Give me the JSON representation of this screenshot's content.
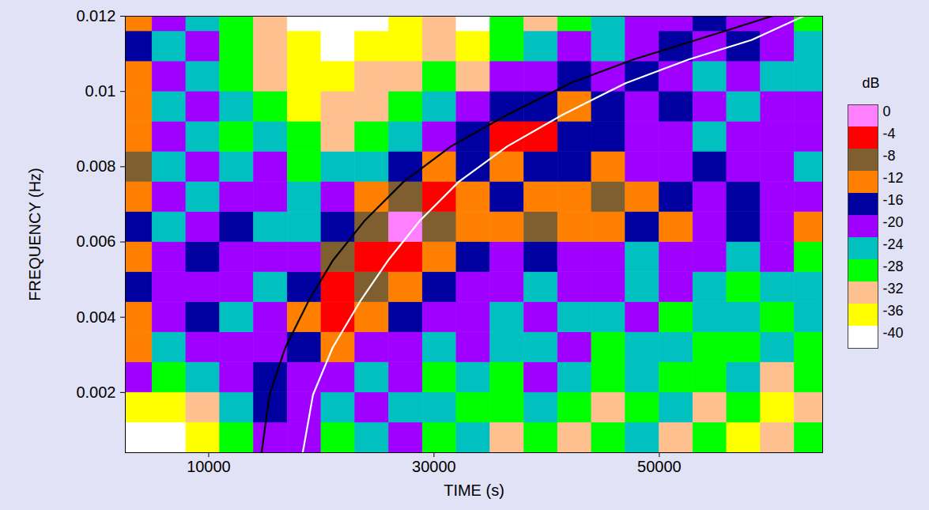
{
  "chart_data": {
    "type": "heatmap",
    "x_label": "TIME (s)",
    "y_label": "FREQUENCY (Hz)",
    "xlim": [
      2600,
      64500
    ],
    "ylim": [
      0.0004,
      0.012
    ],
    "xticks": [
      10000,
      30000,
      50000
    ],
    "yticks": [
      0.002,
      0.004,
      0.006,
      0.008,
      0.01,
      0.012
    ],
    "cells": {
      "x_edges": [
        2600,
        5000,
        8000,
        11000,
        14000,
        17000,
        20000,
        23000,
        26000,
        29000,
        32000,
        35000,
        38000,
        41000,
        44000,
        47000,
        50000,
        53000,
        56000,
        59000,
        62000,
        64500
      ],
      "y_edges": [
        0.0004,
        0.0012,
        0.002,
        0.0028,
        0.0036,
        0.0044,
        0.0052,
        0.006,
        0.0068,
        0.0076,
        0.0084,
        0.0092,
        0.01,
        0.0108,
        0.0116,
        0.012
      ],
      "values": [
        [
          -42,
          -42,
          -38,
          -30,
          -22,
          -22,
          -30,
          -26,
          -22,
          -30,
          -26,
          -34,
          -30,
          -34,
          -30,
          -26,
          -34,
          -30,
          -38,
          -34,
          -30
        ],
        [
          -38,
          -38,
          -34,
          -26,
          -18,
          -22,
          -26,
          -22,
          -26,
          -26,
          -30,
          -30,
          -26,
          -30,
          -34,
          -30,
          -26,
          -34,
          -30,
          -38,
          -34
        ],
        [
          -22,
          -30,
          -26,
          -22,
          -18,
          -22,
          -22,
          -26,
          -22,
          -30,
          -26,
          -30,
          -22,
          -26,
          -30,
          -26,
          -30,
          -30,
          -26,
          -34,
          -30
        ],
        [
          -14,
          -26,
          -22,
          -22,
          -22,
          -18,
          -14,
          -22,
          -22,
          -26,
          -22,
          -26,
          -26,
          -22,
          -30,
          -26,
          -26,
          -30,
          -30,
          -26,
          -30
        ],
        [
          -14,
          -22,
          -18,
          -26,
          -22,
          -14,
          -6,
          -14,
          -18,
          -22,
          -22,
          -26,
          -22,
          -26,
          -26,
          -22,
          -30,
          -26,
          -26,
          -30,
          -26
        ],
        [
          -18,
          -22,
          -22,
          -22,
          -26,
          -18,
          -6,
          -10,
          -14,
          -18,
          -22,
          -22,
          -26,
          -22,
          -22,
          -26,
          -22,
          -26,
          -30,
          -26,
          -26
        ],
        [
          -14,
          -22,
          -18,
          -22,
          -22,
          -22,
          -10,
          -6,
          -6,
          -14,
          -18,
          -22,
          -18,
          -22,
          -22,
          -26,
          -22,
          -22,
          -26,
          -22,
          -30
        ],
        [
          -18,
          -26,
          -22,
          -18,
          -26,
          -26,
          -18,
          -10,
          -2,
          -10,
          -14,
          -14,
          -10,
          -14,
          -14,
          -18,
          -14,
          -22,
          -18,
          -22,
          -14
        ],
        [
          -14,
          -22,
          -26,
          -22,
          -22,
          -26,
          -22,
          -14,
          -10,
          -6,
          -14,
          -18,
          -14,
          -14,
          -10,
          -14,
          -18,
          -22,
          -18,
          -22,
          -22
        ],
        [
          -10,
          -26,
          -22,
          -26,
          -22,
          -30,
          -26,
          -26,
          -18,
          -14,
          -18,
          -14,
          -18,
          -18,
          -14,
          -22,
          -22,
          -18,
          -22,
          -22,
          -26
        ],
        [
          -14,
          -22,
          -26,
          -30,
          -26,
          -30,
          -34,
          -30,
          -26,
          -22,
          -18,
          -6,
          -6,
          -18,
          -18,
          -22,
          -22,
          -26,
          -22,
          -22,
          -22
        ],
        [
          -14,
          -26,
          -22,
          -26,
          -30,
          -38,
          -34,
          -34,
          -30,
          -26,
          -22,
          -18,
          -18,
          -14,
          -18,
          -22,
          -18,
          -22,
          -26,
          -22,
          -22
        ],
        [
          -14,
          -22,
          -26,
          -30,
          -34,
          -38,
          -38,
          -34,
          -34,
          -30,
          -34,
          -22,
          -22,
          -18,
          -22,
          -18,
          -22,
          -26,
          -22,
          -26,
          -26
        ],
        [
          -18,
          -26,
          -22,
          -30,
          -34,
          -38,
          -42,
          -38,
          -38,
          -34,
          -38,
          -30,
          -26,
          -22,
          -26,
          -22,
          -18,
          -22,
          -18,
          -22,
          -26
        ],
        [
          -14,
          -22,
          -26,
          -30,
          -34,
          -42,
          -42,
          -42,
          -38,
          -34,
          -42,
          -30,
          -34,
          -30,
          -26,
          -22,
          -22,
          -18,
          -22,
          -22,
          -30
        ]
      ]
    },
    "colorbar": {
      "label": "dB",
      "range": [
        -44,
        0
      ],
      "ticks": [
        0,
        -4,
        -8,
        -12,
        -16,
        -20,
        -24,
        -28,
        -32,
        -36,
        -40
      ],
      "colors": [
        "#ff80ff",
        "#ff0000",
        "#7f5f2f",
        "#ff8000",
        "#0000a0",
        "#a000ff",
        "#00c0c0",
        "#00ff00",
        "#ffc090",
        "#ffff00",
        "#ffffff"
      ]
    },
    "series": [
      {
        "type": "line",
        "color": "#000000",
        "x": [
          14700,
          15400,
          16800,
          18900,
          21000,
          23800,
          27300,
          31500,
          36500,
          42100,
          47700,
          53300,
          60000
        ],
        "y": [
          0.0004,
          0.00194,
          0.00319,
          0.00445,
          0.0055,
          0.00655,
          0.0076,
          0.00854,
          0.00938,
          0.01022,
          0.01085,
          0.01137,
          0.012
        ]
      },
      {
        "type": "line",
        "color": "#ffffff",
        "x": [
          18350,
          19260,
          21000,
          23500,
          25900,
          28700,
          32200,
          36500,
          41400,
          47000,
          52600,
          58200,
          62800
        ],
        "y": [
          0.0004,
          0.00194,
          0.00319,
          0.00445,
          0.0055,
          0.00655,
          0.0076,
          0.00854,
          0.00938,
          0.01022,
          0.01085,
          0.01137,
          0.012
        ]
      }
    ]
  }
}
